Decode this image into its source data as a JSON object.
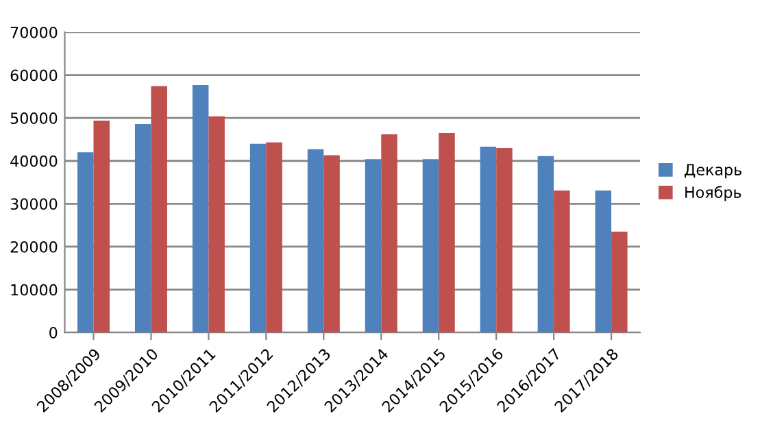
{
  "chart_data": {
    "type": "bar",
    "categories": [
      "2008/2009",
      "2009/2010",
      "2010/2011",
      "2011/2012",
      "2012/2013",
      "2013/2014",
      "2014/2015",
      "2015/2016",
      "2016/2017",
      "2017/2018"
    ],
    "series": [
      {
        "name": "Декарь",
        "color": "#4f81bd",
        "values": [
          42000,
          48600,
          57700,
          44000,
          42700,
          40400,
          40400,
          43300,
          41100,
          33100
        ]
      },
      {
        "name": "Ноябрь",
        "color": "#c0504d",
        "values": [
          49400,
          57400,
          50400,
          44300,
          41300,
          46200,
          46500,
          43000,
          33100,
          23500
        ]
      }
    ],
    "ylim": [
      0,
      70000
    ],
    "yticks": [
      0,
      10000,
      20000,
      30000,
      40000,
      50000,
      60000,
      70000
    ],
    "grid": "y",
    "legend": "right"
  }
}
